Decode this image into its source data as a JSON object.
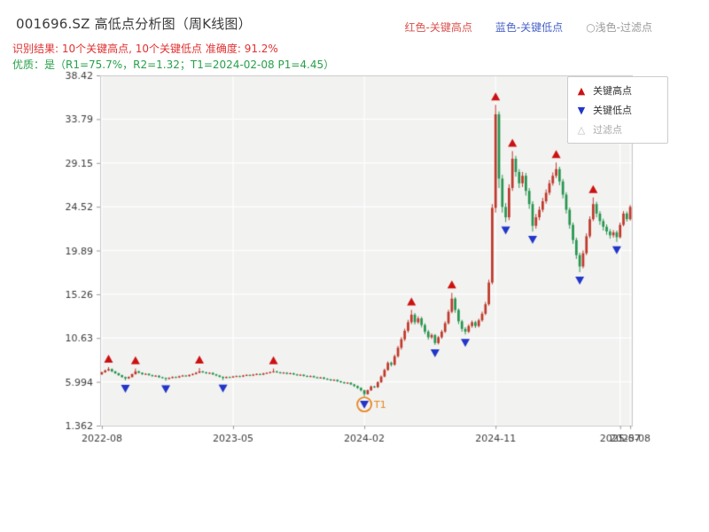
{
  "header": {
    "title": "001696.SZ 高低点分析图（周K线图）",
    "top_legend": {
      "high_label": "红色-关键高点",
      "low_label": "蓝色-关键低点",
      "filter_label": "○浅色-过滤点",
      "high_color": "#d9534f",
      "low_color": "#4a63c8",
      "filter_color": "#9b9b9b"
    },
    "result_line": "识别结果: 10个关键高点, 10个关键低点  准确度: 91.2%",
    "result_color": "#e03131",
    "quality_line": "优质：是（R1=75.7%，R2=1.32；T1=2024-02-08 P1=4.45）",
    "quality_color": "#27a04a"
  },
  "legend_box": {
    "items": [
      {
        "label": "关键高点",
        "symbol": "▲",
        "symbol_color": "#cc1111",
        "text_color": "#333333"
      },
      {
        "label": "关键低点",
        "symbol": "▼",
        "symbol_color": "#2236c8",
        "text_color": "#333333"
      },
      {
        "label": "过滤点",
        "symbol": "△",
        "symbol_color": "#bbbbbb",
        "text_color": "#aaaaaa"
      }
    ]
  },
  "chart_data": {
    "type": "candlestick",
    "title": "001696.SZ 高低点分析图（周K线图）",
    "x_tick_labels": [
      "2022-08",
      "2023-05",
      "2024-02",
      "2024-11",
      "2025-07",
      "2025-08"
    ],
    "x_tick_indices": [
      0,
      39,
      78,
      117,
      154,
      157
    ],
    "y_ticks": [
      1.362,
      5.994,
      10.63,
      15.26,
      19.89,
      24.52,
      29.15,
      33.79,
      38.42
    ],
    "y_tick_labels": [
      "1.362",
      "5.994",
      "10.63",
      "15.26",
      "19.89",
      "24.52",
      "29.15",
      "33.79",
      "38.42"
    ],
    "ylim": [
      1.362,
      38.42
    ],
    "colors": {
      "up": "#c0392b",
      "down": "#27964f",
      "key_high": "#cc1111",
      "key_low": "#2236c8",
      "annotation": "#e8871e",
      "grid": "#ffffff",
      "plot_bg": "#f2f2f1",
      "spine": "#c9c9c9",
      "tick_text": "#3d3d3d"
    },
    "candles": [
      [
        6.8,
        7.0,
        6.7,
        7.08
      ],
      [
        7.0,
        7.2,
        6.95,
        7.28
      ],
      [
        7.2,
        7.35,
        7.12,
        7.55
      ],
      [
        7.35,
        7.1,
        7.02,
        7.4
      ],
      [
        7.1,
        6.9,
        6.82,
        7.15
      ],
      [
        6.9,
        6.7,
        6.62,
        6.95
      ],
      [
        6.7,
        6.5,
        6.42,
        6.75
      ],
      [
        6.5,
        6.35,
        6.15,
        6.55
      ],
      [
        6.35,
        6.5,
        6.3,
        6.58
      ],
      [
        6.5,
        6.8,
        6.45,
        6.88
      ],
      [
        6.8,
        7.1,
        6.75,
        7.4
      ],
      [
        7.1,
        6.95,
        6.88,
        7.18
      ],
      [
        6.95,
        6.8,
        6.72,
        7.0
      ],
      [
        6.8,
        6.84,
        6.73,
        6.91
      ],
      [
        6.84,
        6.7,
        6.63,
        6.9
      ],
      [
        6.7,
        6.6,
        6.53,
        6.76
      ],
      [
        6.6,
        6.64,
        6.54,
        6.71
      ],
      [
        6.64,
        6.48,
        6.41,
        6.7
      ],
      [
        6.48,
        6.4,
        6.33,
        6.54
      ],
      [
        6.4,
        6.3,
        6.1,
        6.46
      ],
      [
        6.3,
        6.4,
        6.25,
        6.48
      ],
      [
        6.4,
        6.5,
        6.35,
        6.58
      ],
      [
        6.5,
        6.46,
        6.39,
        6.57
      ],
      [
        6.46,
        6.58,
        6.4,
        6.65
      ],
      [
        6.58,
        6.66,
        6.52,
        6.73
      ],
      [
        6.66,
        6.6,
        6.53,
        6.72
      ],
      [
        6.6,
        6.72,
        6.54,
        6.79
      ],
      [
        6.72,
        6.82,
        6.66,
        6.89
      ],
      [
        6.82,
        6.96,
        6.76,
        7.03
      ],
      [
        6.96,
        7.1,
        6.9,
        7.45
      ],
      [
        7.1,
        7.0,
        6.93,
        7.16
      ],
      [
        7.0,
        6.9,
        6.83,
        7.06
      ],
      [
        6.9,
        6.94,
        6.84,
        7.01
      ],
      [
        6.94,
        6.78,
        6.71,
        7.0
      ],
      [
        6.78,
        6.66,
        6.59,
        6.84
      ],
      [
        6.66,
        6.52,
        6.45,
        6.72
      ],
      [
        6.52,
        6.4,
        6.18,
        6.58
      ],
      [
        6.4,
        6.5,
        6.35,
        6.57
      ],
      [
        6.5,
        6.46,
        6.4,
        6.56
      ],
      [
        6.46,
        6.56,
        6.41,
        6.63
      ],
      [
        6.56,
        6.6,
        6.5,
        6.67
      ],
      [
        6.6,
        6.55,
        6.48,
        6.66
      ],
      [
        6.55,
        6.66,
        6.5,
        6.73
      ],
      [
        6.66,
        6.72,
        6.6,
        6.79
      ],
      [
        6.72,
        6.66,
        6.59,
        6.78
      ],
      [
        6.66,
        6.76,
        6.6,
        6.83
      ],
      [
        6.76,
        6.82,
        6.7,
        6.89
      ],
      [
        6.82,
        6.76,
        6.69,
        6.88
      ],
      [
        6.76,
        6.88,
        6.7,
        6.95
      ],
      [
        6.88,
        6.94,
        6.82,
        7.01
      ],
      [
        6.94,
        7.02,
        6.88,
        7.09
      ],
      [
        7.02,
        7.1,
        6.96,
        7.4
      ],
      [
        7.1,
        7.0,
        6.93,
        7.16
      ],
      [
        7.0,
        6.92,
        6.85,
        7.06
      ],
      [
        6.92,
        6.96,
        6.86,
        7.03
      ],
      [
        6.96,
        6.85,
        6.78,
        7.02
      ],
      [
        6.85,
        6.9,
        6.79,
        6.97
      ],
      [
        6.9,
        6.78,
        6.71,
        6.96
      ],
      [
        6.78,
        6.7,
        6.63,
        6.84
      ],
      [
        6.7,
        6.74,
        6.64,
        6.81
      ],
      [
        6.74,
        6.62,
        6.55,
        6.8
      ],
      [
        6.62,
        6.55,
        6.48,
        6.68
      ],
      [
        6.55,
        6.6,
        6.49,
        6.67
      ],
      [
        6.6,
        6.48,
        6.41,
        6.66
      ],
      [
        6.48,
        6.4,
        6.33,
        6.54
      ],
      [
        6.4,
        6.45,
        6.34,
        6.52
      ],
      [
        6.45,
        6.32,
        6.25,
        6.51
      ],
      [
        6.32,
        6.25,
        6.18,
        6.38
      ],
      [
        6.25,
        6.15,
        6.08,
        6.31
      ],
      [
        6.15,
        6.2,
        6.09,
        6.27
      ],
      [
        6.2,
        6.05,
        5.98,
        6.26
      ],
      [
        6.05,
        5.95,
        5.88,
        6.11
      ],
      [
        5.95,
        5.85,
        5.78,
        6.01
      ],
      [
        5.85,
        5.9,
        5.79,
        5.97
      ],
      [
        5.9,
        5.72,
        5.65,
        5.96
      ],
      [
        5.72,
        5.55,
        5.45,
        5.78
      ],
      [
        5.55,
        5.35,
        5.25,
        5.61
      ],
      [
        5.35,
        5.1,
        4.98,
        5.41
      ],
      [
        5.1,
        4.7,
        4.45,
        5.16
      ],
      [
        4.7,
        5.1,
        4.62,
        5.18
      ],
      [
        5.1,
        5.5,
        5.02,
        5.6
      ],
      [
        5.5,
        5.42,
        5.34,
        5.58
      ],
      [
        5.42,
        5.95,
        5.34,
        6.05
      ],
      [
        5.95,
        6.55,
        5.87,
        6.67
      ],
      [
        6.55,
        7.25,
        6.47,
        7.39
      ],
      [
        7.25,
        8.0,
        7.15,
        8.16
      ],
      [
        8.0,
        7.8,
        7.62,
        8.14
      ],
      [
        7.8,
        8.7,
        7.7,
        8.88
      ],
      [
        8.7,
        9.6,
        8.55,
        9.8
      ],
      [
        9.6,
        10.5,
        9.4,
        10.72
      ],
      [
        10.5,
        11.4,
        10.3,
        11.62
      ],
      [
        11.4,
        12.3,
        11.2,
        12.55
      ],
      [
        12.3,
        13.1,
        12.1,
        13.6
      ],
      [
        13.1,
        12.3,
        12.05,
        13.28
      ],
      [
        12.3,
        12.7,
        12.12,
        12.92
      ],
      [
        12.7,
        12.0,
        11.75,
        12.88
      ],
      [
        12.0,
        11.3,
        11.05,
        12.18
      ],
      [
        11.3,
        10.7,
        10.45,
        11.48
      ],
      [
        10.7,
        10.95,
        10.52,
        11.12
      ],
      [
        10.95,
        10.1,
        9.9,
        11.05
      ],
      [
        10.1,
        10.7,
        9.95,
        10.85
      ],
      [
        10.7,
        11.3,
        10.55,
        11.48
      ],
      [
        11.3,
        12.2,
        11.15,
        12.4
      ],
      [
        12.2,
        13.4,
        12.05,
        13.62
      ],
      [
        13.4,
        14.8,
        13.25,
        15.4
      ],
      [
        14.8,
        13.6,
        13.3,
        14.95
      ],
      [
        13.6,
        12.4,
        12.1,
        13.75
      ],
      [
        12.4,
        11.6,
        11.3,
        12.55
      ],
      [
        11.6,
        11.3,
        11.0,
        11.78
      ],
      [
        11.3,
        11.9,
        11.15,
        12.08
      ],
      [
        11.9,
        12.3,
        11.72,
        12.48
      ],
      [
        12.3,
        11.9,
        11.68,
        12.45
      ],
      [
        11.9,
        12.5,
        11.75,
        12.68
      ],
      [
        12.5,
        13.2,
        12.35,
        13.42
      ],
      [
        13.2,
        14.2,
        13.05,
        14.45
      ],
      [
        14.2,
        16.5,
        14.05,
        16.8
      ],
      [
        16.5,
        24.4,
        16.3,
        24.8
      ],
      [
        24.4,
        34.3,
        23.9,
        35.3
      ],
      [
        34.3,
        27.5,
        26.5,
        34.6
      ],
      [
        27.5,
        24.5,
        23.9,
        27.9
      ],
      [
        24.5,
        23.4,
        22.9,
        24.9
      ],
      [
        23.4,
        26.5,
        23.1,
        26.9
      ],
      [
        26.5,
        29.6,
        26.2,
        30.4
      ],
      [
        29.6,
        28.2,
        27.7,
        29.9
      ],
      [
        28.2,
        27.0,
        26.5,
        28.5
      ],
      [
        27.0,
        27.8,
        26.6,
        28.2
      ],
      [
        27.8,
        26.2,
        25.7,
        28.1
      ],
      [
        26.2,
        24.8,
        24.3,
        26.5
      ],
      [
        24.8,
        22.5,
        21.9,
        25.1
      ],
      [
        22.5,
        23.4,
        22.2,
        23.75
      ],
      [
        23.4,
        24.2,
        23.1,
        24.55
      ],
      [
        24.2,
        25.1,
        23.95,
        25.45
      ],
      [
        25.1,
        26.0,
        24.85,
        26.35
      ],
      [
        26.0,
        27.0,
        25.75,
        27.35
      ],
      [
        27.0,
        27.8,
        26.75,
        28.15
      ],
      [
        27.8,
        28.5,
        27.55,
        29.2
      ],
      [
        28.5,
        27.2,
        26.8,
        28.75
      ],
      [
        27.2,
        25.8,
        25.4,
        27.45
      ],
      [
        25.8,
        24.2,
        23.8,
        26.05
      ],
      [
        24.2,
        22.6,
        22.2,
        24.45
      ],
      [
        22.6,
        21.0,
        20.6,
        22.85
      ],
      [
        21.0,
        19.4,
        19.0,
        21.25
      ],
      [
        19.4,
        18.2,
        17.6,
        19.65
      ],
      [
        18.2,
        19.6,
        18.0,
        19.9
      ],
      [
        19.6,
        21.4,
        19.4,
        21.7
      ],
      [
        21.4,
        23.2,
        21.2,
        23.5
      ],
      [
        23.2,
        24.8,
        23.0,
        25.5
      ],
      [
        24.8,
        23.8,
        23.4,
        25.05
      ],
      [
        23.8,
        23.0,
        22.6,
        24.05
      ],
      [
        23.0,
        22.4,
        22.0,
        23.25
      ],
      [
        22.4,
        21.9,
        21.55,
        22.65
      ],
      [
        21.9,
        21.5,
        21.15,
        22.15
      ],
      [
        21.5,
        21.8,
        21.25,
        22.05
      ],
      [
        21.8,
        21.3,
        20.8,
        22.0
      ],
      [
        21.3,
        22.6,
        21.15,
        22.85
      ],
      [
        22.6,
        23.8,
        22.45,
        24.05
      ],
      [
        23.8,
        23.2,
        22.95,
        24.0
      ],
      [
        23.2,
        24.5,
        23.05,
        24.7
      ]
    ],
    "key_highs": [
      2,
      10,
      29,
      51,
      92,
      104,
      117,
      122,
      135,
      146
    ],
    "key_lows": [
      7,
      19,
      36,
      78,
      99,
      108,
      120,
      128,
      142,
      153
    ],
    "annotation": {
      "label": "T1",
      "index": 78,
      "value": 4.45
    }
  }
}
